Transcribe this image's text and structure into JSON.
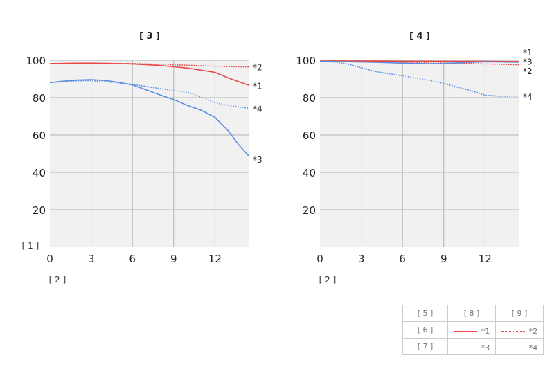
{
  "chart_data": [
    {
      "type": "line",
      "title": "[ 3 ]",
      "ylabel": "[ 1 ]",
      "xlabel": "[ 2 ]",
      "xlim": [
        0,
        14.5
      ],
      "ylim": [
        0,
        100
      ],
      "xticks": [
        0,
        3,
        6,
        9,
        12
      ],
      "xtick_labels": [
        "0",
        "3",
        "6",
        "9",
        "12"
      ],
      "yticks": [
        20,
        40,
        60,
        80,
        100
      ],
      "ytick_labels": [
        "20",
        "40",
        "60",
        "80",
        "100"
      ],
      "grid": true,
      "series": [
        {
          "name": "*1",
          "color": "#e8484a",
          "style": "solid",
          "x": [
            0,
            2,
            3,
            4,
            6,
            8,
            10,
            12,
            13,
            14.5
          ],
          "y": [
            98.2,
            98.4,
            98.4,
            98.3,
            98.0,
            97.2,
            95.8,
            93.5,
            90.5,
            86.5
          ]
        },
        {
          "name": "*2",
          "color": "#e8484a",
          "style": "dotted",
          "x": [
            0,
            3,
            6,
            8,
            10,
            12,
            13,
            14.5
          ],
          "y": [
            98.2,
            98.4,
            98.2,
            97.8,
            97.3,
            96.8,
            96.6,
            96.4
          ]
        },
        {
          "name": "*3",
          "color": "#5a8de0",
          "style": "solid",
          "x": [
            0,
            1,
            2,
            3,
            4,
            5,
            6,
            7,
            8,
            9,
            10,
            11,
            12,
            13,
            13.7,
            14.5
          ],
          "y": [
            88,
            88.8,
            89.4,
            89.6,
            89.2,
            88.2,
            86.8,
            84.2,
            81.5,
            79,
            75.8,
            73.3,
            69.5,
            62,
            55,
            48.5
          ]
        },
        {
          "name": "*4",
          "color": "#5a8de0",
          "style": "dotted",
          "x": [
            0,
            2,
            3,
            4,
            6,
            8,
            9,
            10,
            11,
            12,
            13,
            14.5
          ],
          "y": [
            88,
            89,
            89.1,
            88.5,
            87.1,
            84.8,
            83.8,
            82.8,
            80.3,
            77.3,
            75.8,
            74.3
          ]
        }
      ],
      "end_labels": [
        {
          "text": "*2",
          "y": 96.4
        },
        {
          "text": "*1",
          "y": 86.5
        },
        {
          "text": "*4",
          "y": 74.3
        },
        {
          "text": "*3",
          "y": 47
        }
      ]
    },
    {
      "type": "line",
      "title": "[ 4 ]",
      "ylabel": "",
      "xlabel": "[ 2 ]",
      "xlim": [
        0,
        14.5
      ],
      "ylim": [
        0,
        100
      ],
      "xticks": [
        0,
        3,
        6,
        9,
        12
      ],
      "xtick_labels": [
        "0",
        "3",
        "6",
        "9",
        "12"
      ],
      "yticks": [
        20,
        40,
        60,
        80,
        100
      ],
      "ytick_labels": [
        "20",
        "40",
        "60",
        "80",
        "100"
      ],
      "grid": true,
      "series": [
        {
          "name": "*1",
          "color": "#e8484a",
          "style": "solid",
          "x": [
            0,
            3,
            6,
            9,
            12,
            14.5
          ],
          "y": [
            99.6,
            99.6,
            99.5,
            99.4,
            99.4,
            99.3
          ]
        },
        {
          "name": "*2",
          "color": "#e8484a",
          "style": "dotted",
          "x": [
            0,
            3,
            6,
            9,
            12,
            14.5
          ],
          "y": [
            99.5,
            99.3,
            99.0,
            98.6,
            98.0,
            97.6
          ]
        },
        {
          "name": "*3",
          "color": "#5a8de0",
          "style": "solid",
          "x": [
            0,
            2,
            4,
            6,
            8,
            9,
            10,
            12,
            14.5
          ],
          "y": [
            99.4,
            99.2,
            98.9,
            98.4,
            98.1,
            98.2,
            98.6,
            99.2,
            98.9
          ]
        },
        {
          "name": "*4",
          "color": "#5a8de0",
          "style": "dotted",
          "x": [
            0,
            1,
            2,
            3,
            4,
            5,
            6,
            7,
            8,
            9,
            10,
            11,
            12,
            13,
            14.5
          ],
          "y": [
            99.4,
            99.0,
            98.0,
            96.0,
            94.0,
            92.8,
            91.7,
            90.5,
            89.2,
            87.6,
            85.6,
            83.7,
            81.3,
            80.8,
            80.8
          ]
        }
      ],
      "end_labels": [
        {
          "text": "*1",
          "y": 104.5
        },
        {
          "text": "*3",
          "y": 99.4
        },
        {
          "text": "*2",
          "y": 94.5
        },
        {
          "text": "*4",
          "y": 80.8
        }
      ]
    }
  ],
  "legend": {
    "header": [
      "[ 5 ]",
      "[ 8 ]",
      "[ 9 ]"
    ],
    "rows": [
      {
        "label": "[ 6 ]",
        "left": "*1",
        "right": "*2",
        "color": "#e8484a"
      },
      {
        "label": "[ 7 ]",
        "left": "*3",
        "right": "*4",
        "color": "#5a8de0"
      }
    ]
  }
}
